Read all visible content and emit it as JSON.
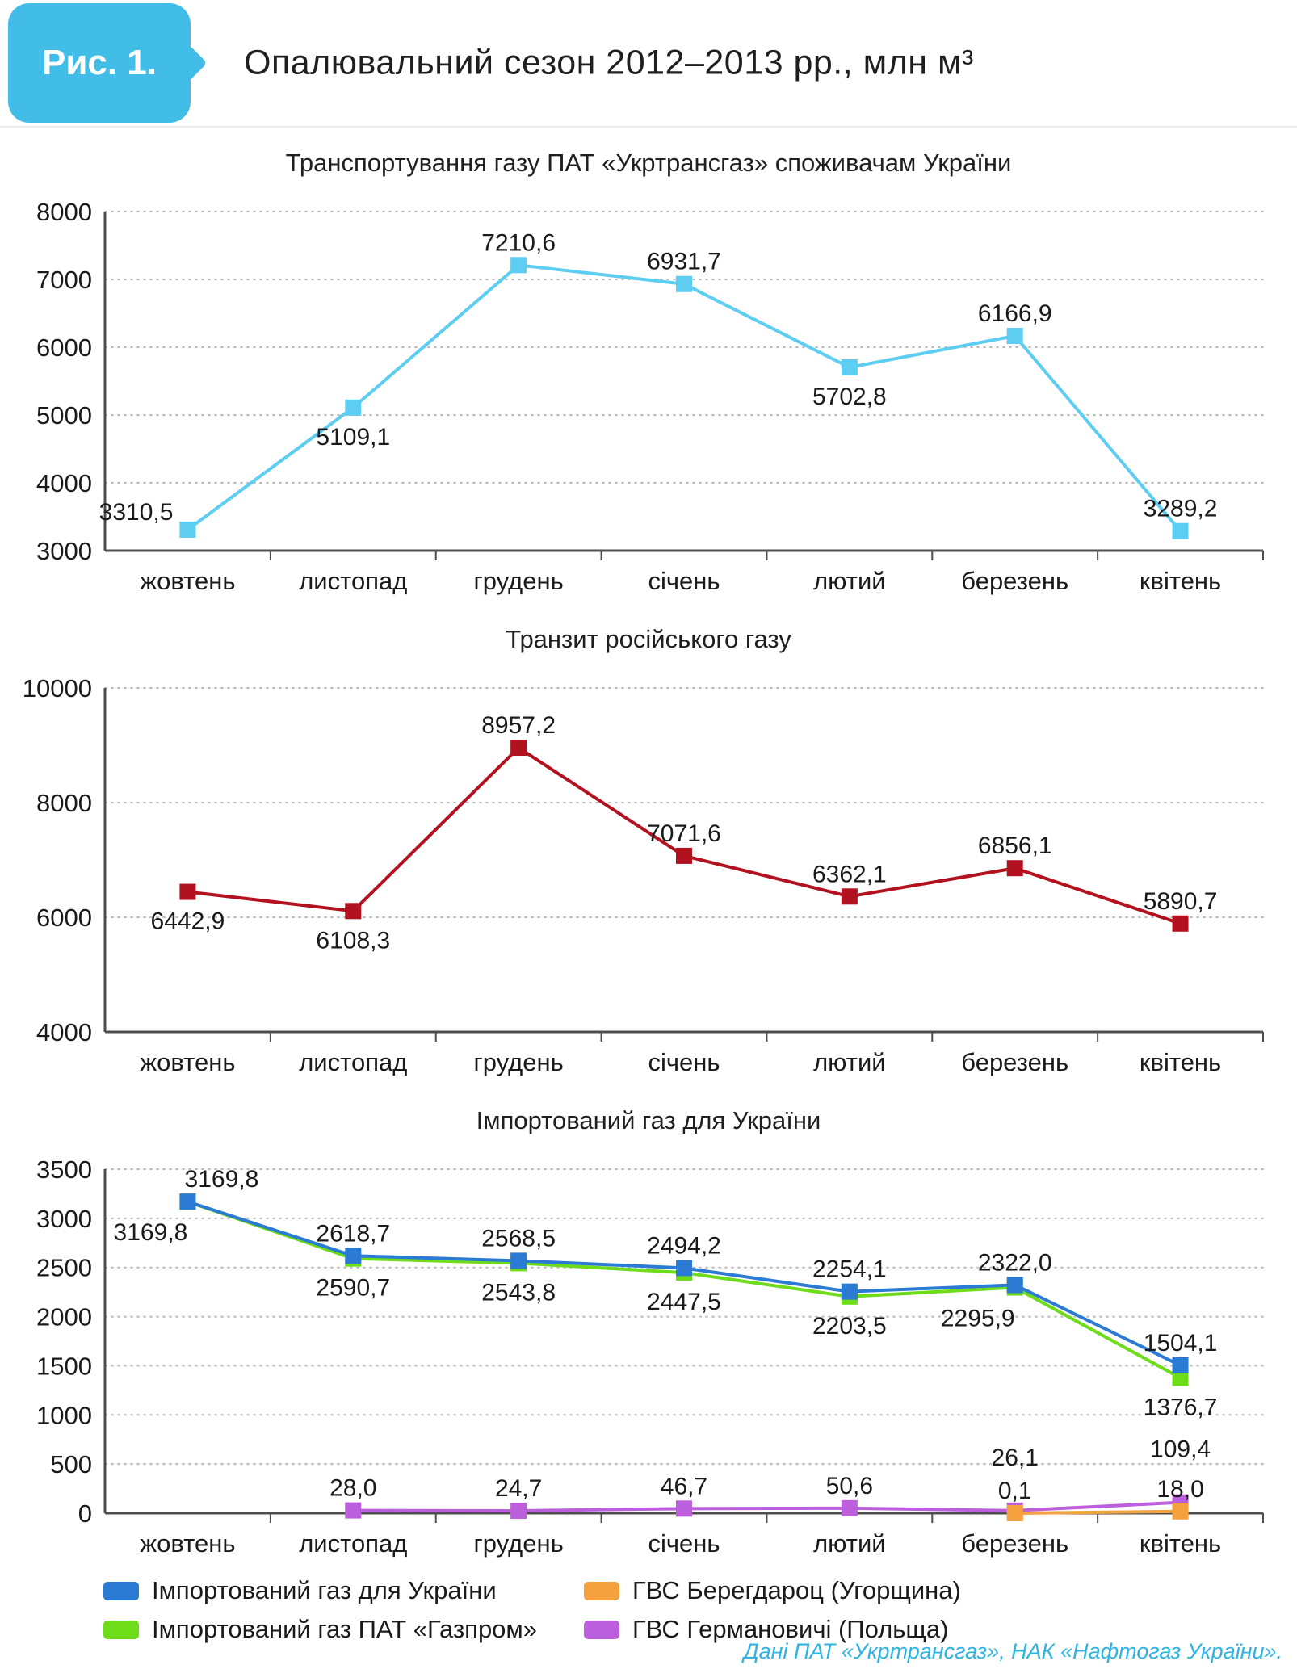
{
  "header": {
    "badge": "Рис. 1.",
    "title": "Опалювальний сезон 2012–2013 рр., млн м³"
  },
  "colors": {
    "badge": "#41bde8",
    "source_text": "#2fb3e3",
    "axis": "#4d4d4d",
    "grid": "#bdbdbd"
  },
  "chart_data": [
    {
      "type": "line",
      "title": "Транспортування газу ПАТ «Укртрансгаз» споживачам України",
      "categories": [
        "жовтень",
        "листопад",
        "грудень",
        "січень",
        "лютий",
        "березень",
        "квітень"
      ],
      "ylim": [
        3000,
        8000
      ],
      "yticks": [
        3000,
        4000,
        5000,
        6000,
        7000,
        8000
      ],
      "grid": "dotted-horizontal",
      "legend_position": "none",
      "series": [
        {
          "name": "Транспортування газу споживачам України",
          "color": "#5ecdf2",
          "values": [
            3310.5,
            5109.1,
            7210.6,
            6931.7,
            5702.8,
            6166.9,
            3289.2
          ],
          "labels": [
            "3310,5",
            "5109,1",
            "7210,6",
            "6931,7",
            "5702,8",
            "6166,9",
            "3289,2"
          ],
          "label_pos": [
            "left-above",
            "below",
            "above",
            "above",
            "below",
            "above",
            "above"
          ]
        }
      ]
    },
    {
      "type": "line",
      "title": "Транзит російського газу",
      "categories": [
        "жовтень",
        "листопад",
        "грудень",
        "січень",
        "лютий",
        "березень",
        "квітень"
      ],
      "ylim": [
        4000,
        10000
      ],
      "yticks": [
        4000,
        6000,
        8000,
        10000
      ],
      "grid": "dotted-horizontal",
      "legend_position": "none",
      "series": [
        {
          "name": "Транзит російського газу",
          "color": "#b2121f",
          "values": [
            6442.9,
            6108.3,
            8957.2,
            7071.6,
            6362.1,
            6856.1,
            5890.7
          ],
          "labels": [
            "6442,9",
            "6108,3",
            "8957,2",
            "7071,6",
            "6362,1",
            "6856,1",
            "5890,7"
          ],
          "label_pos": [
            "below",
            "below",
            "above",
            "above",
            "above",
            "above",
            "above"
          ]
        }
      ]
    },
    {
      "type": "line",
      "title": "Імпортований газ для України",
      "categories": [
        "жовтень",
        "листопад",
        "грудень",
        "січень",
        "лютий",
        "березень",
        "квітень"
      ],
      "ylim": [
        0,
        3500
      ],
      "yticks": [
        0,
        500,
        1000,
        1500,
        2000,
        2500,
        3000,
        3500
      ],
      "grid": "dotted-horizontal",
      "legend_position": "bottom",
      "series": [
        {
          "name": "Імпортований газ ПАТ «Газпром»",
          "color": "#6edc19",
          "values": [
            3169.8,
            2590.7,
            2543.8,
            2447.5,
            2203.5,
            2295.9,
            1376.7
          ],
          "labels": [
            "3169,8",
            "2590,7",
            "2543,8",
            "2447,5",
            "2203,5",
            "2295,9",
            "1376,7"
          ],
          "label_pos": [
            "below-left",
            "below",
            "below",
            "below",
            "below",
            "below-left",
            "below"
          ]
        },
        {
          "name": "Імпортований газ для України",
          "color": "#2b7bd4",
          "values": [
            3169.8,
            2618.7,
            2568.5,
            2494.2,
            2254.1,
            2322.0,
            1504.1
          ],
          "labels": [
            "3169,8",
            "2618,7",
            "2568,5",
            "2494,2",
            "2254,1",
            "2322,0",
            "1504,1"
          ],
          "label_pos": [
            "above-right",
            "above",
            "above",
            "above",
            "above",
            "above",
            "above"
          ]
        },
        {
          "name": "ГВС Германовичі (Польща)",
          "color": "#bb5fdd",
          "values": [
            null,
            28.0,
            24.7,
            46.7,
            50.6,
            26.1,
            109.4
          ],
          "labels": [
            null,
            "28,0",
            "24,7",
            "46,7",
            "50,6",
            "26,1",
            "109,4"
          ],
          "label_pos": [
            null,
            "above",
            "above",
            "above",
            "above",
            "above2",
            "above2"
          ]
        },
        {
          "name": "ГВС Берегдароц (Угорщина)",
          "color": "#f5a13d",
          "values": [
            null,
            null,
            null,
            null,
            null,
            0.1,
            18.0
          ],
          "labels": [
            null,
            null,
            null,
            null,
            null,
            "0,1",
            "18,0"
          ],
          "label_pos": [
            null,
            null,
            null,
            null,
            null,
            "above",
            "above"
          ]
        }
      ]
    }
  ],
  "legend": {
    "items": [
      {
        "label": "Імпортований газ для України",
        "color": "#2b7bd4"
      },
      {
        "label": "ГВС Берегдароц (Угорщина)",
        "color": "#f5a13d"
      },
      {
        "label": "Імпортований газ ПАТ «Газпром»",
        "color": "#6edc19"
      },
      {
        "label": "ГВС Германовичі (Польща)",
        "color": "#bb5fdd"
      }
    ]
  },
  "footer": {
    "source": "Дані ПАТ «Укртрансгаз», НАК «Нафтогаз України»."
  }
}
